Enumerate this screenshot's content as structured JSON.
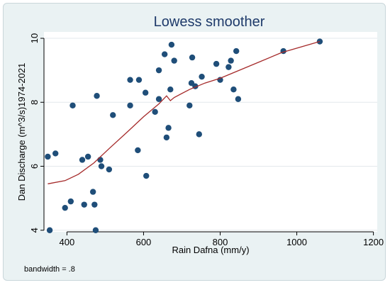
{
  "chart_data": {
    "type": "scatter",
    "title": "Lowess smoother",
    "xlabel": "Rain Dafna (mm/y)",
    "ylabel": "Dan Discharge (m^3/s)1974-2021",
    "xlim": [
      340,
      1210
    ],
    "ylim": [
      3.95,
      10.2
    ],
    "xticks": [
      400,
      600,
      800,
      1000,
      1200
    ],
    "yticks": [
      4,
      6,
      8,
      10
    ],
    "grid": "horizontal",
    "note": "bandwidth = .8",
    "colors": {
      "points": "#1f4e79",
      "line": "#a52a2a",
      "plot_bg": "#ffffff",
      "frame_bg": "#eaf2f3",
      "grid": "#e3e8ec"
    },
    "series": [
      {
        "type": "scatter",
        "points": [
          [
            350,
            6.3
          ],
          [
            355,
            4.0
          ],
          [
            370,
            6.4
          ],
          [
            395,
            4.7
          ],
          [
            410,
            4.9
          ],
          [
            415,
            7.9
          ],
          [
            440,
            6.2
          ],
          [
            445,
            4.8
          ],
          [
            455,
            6.3
          ],
          [
            468,
            5.2
          ],
          [
            472,
            4.8
          ],
          [
            475,
            4.0
          ],
          [
            478,
            8.2
          ],
          [
            487,
            6.2
          ],
          [
            490,
            6.0
          ],
          [
            510,
            5.9
          ],
          [
            520,
            7.6
          ],
          [
            565,
            8.7
          ],
          [
            565,
            7.9
          ],
          [
            585,
            6.5
          ],
          [
            588,
            8.7
          ],
          [
            605,
            8.3
          ],
          [
            607,
            5.7
          ],
          [
            630,
            7.7
          ],
          [
            640,
            8.1
          ],
          [
            640,
            9.0
          ],
          [
            655,
            9.5
          ],
          [
            660,
            6.9
          ],
          [
            665,
            7.2
          ],
          [
            670,
            8.4
          ],
          [
            673,
            9.8
          ],
          [
            680,
            9.3
          ],
          [
            720,
            7.9
          ],
          [
            725,
            8.6
          ],
          [
            727,
            9.4
          ],
          [
            735,
            8.5
          ],
          [
            745,
            7.0
          ],
          [
            752,
            8.8
          ],
          [
            790,
            9.2
          ],
          [
            800,
            8.7
          ],
          [
            822,
            9.1
          ],
          [
            828,
            9.3
          ],
          [
            835,
            8.4
          ],
          [
            842,
            9.6
          ],
          [
            847,
            8.1
          ],
          [
            965,
            9.6
          ],
          [
            1060,
            9.9
          ]
        ]
      },
      {
        "type": "line",
        "points": [
          [
            350,
            5.45
          ],
          [
            395,
            5.55
          ],
          [
            430,
            5.75
          ],
          [
            470,
            6.1
          ],
          [
            510,
            6.55
          ],
          [
            560,
            7.1
          ],
          [
            600,
            7.55
          ],
          [
            640,
            7.95
          ],
          [
            660,
            8.2
          ],
          [
            670,
            8.05
          ],
          [
            680,
            8.15
          ],
          [
            720,
            8.4
          ],
          [
            760,
            8.6
          ],
          [
            800,
            8.75
          ],
          [
            840,
            8.95
          ],
          [
            900,
            9.25
          ],
          [
            960,
            9.55
          ],
          [
            1060,
            9.9
          ]
        ]
      }
    ]
  }
}
